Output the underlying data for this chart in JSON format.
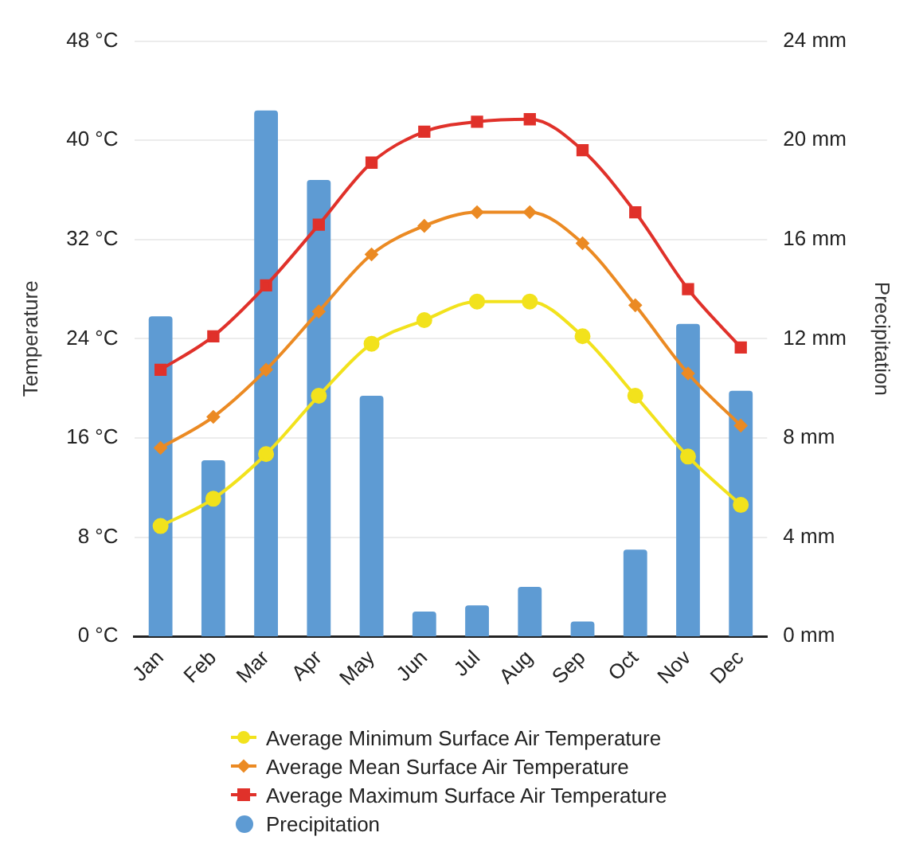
{
  "chart_data": {
    "type": "line",
    "ylabel": "Temperature",
    "y2label": "Precipitation",
    "categories": [
      "Jan",
      "Feb",
      "Mar",
      "Apr",
      "May",
      "Jun",
      "Jul",
      "Aug",
      "Sep",
      "Oct",
      "Nov",
      "Dec"
    ],
    "series": [
      {
        "name": "Average Minimum Surface Air Temperature",
        "color": "#f2e21c",
        "marker": "circle",
        "values": [
          8.9,
          11.1,
          14.7,
          19.4,
          23.6,
          25.5,
          27.0,
          27.0,
          24.2,
          19.4,
          14.5,
          10.6
        ]
      },
      {
        "name": "Average Mean Surface Air Temperature",
        "color": "#eb8a23",
        "marker": "diamond",
        "values": [
          15.2,
          17.7,
          21.5,
          26.2,
          30.8,
          33.1,
          34.2,
          34.2,
          31.7,
          26.7,
          21.2,
          17.0
        ]
      },
      {
        "name": "Average Maximum Surface Air Temperature",
        "color": "#e0312a",
        "marker": "square",
        "values": [
          21.5,
          24.2,
          28.3,
          33.2,
          38.2,
          40.7,
          41.5,
          41.7,
          39.2,
          34.2,
          28.0,
          23.3
        ]
      },
      {
        "name": "Precipitation",
        "type": "bar",
        "axis": "y2",
        "color": "#5e9bd3",
        "values": [
          12.9,
          7.1,
          21.2,
          18.4,
          9.7,
          1.0,
          1.25,
          2.0,
          0.6,
          3.5,
          12.6,
          9.9
        ]
      }
    ],
    "ylim": [
      0,
      48
    ],
    "yticks": [
      {
        "value": 0,
        "label": "0 °C"
      },
      {
        "value": 8,
        "label": "8 °C"
      },
      {
        "value": 16,
        "label": "16 °C"
      },
      {
        "value": 24,
        "label": "24 °C"
      },
      {
        "value": 32,
        "label": "32 °C"
      },
      {
        "value": 40,
        "label": "40 °C"
      },
      {
        "value": 48,
        "label": "48 °C"
      }
    ],
    "y2lim": [
      0,
      24
    ],
    "y2ticks": [
      {
        "value": 0,
        "label": "0 mm"
      },
      {
        "value": 4,
        "label": "4 mm"
      },
      {
        "value": 8,
        "label": "8 mm"
      },
      {
        "value": 12,
        "label": "12 mm"
      },
      {
        "value": 16,
        "label": "16 mm"
      },
      {
        "value": 20,
        "label": "20 mm"
      },
      {
        "value": 24,
        "label": "24 mm"
      }
    ],
    "grid": "y",
    "legend": "bottom"
  }
}
